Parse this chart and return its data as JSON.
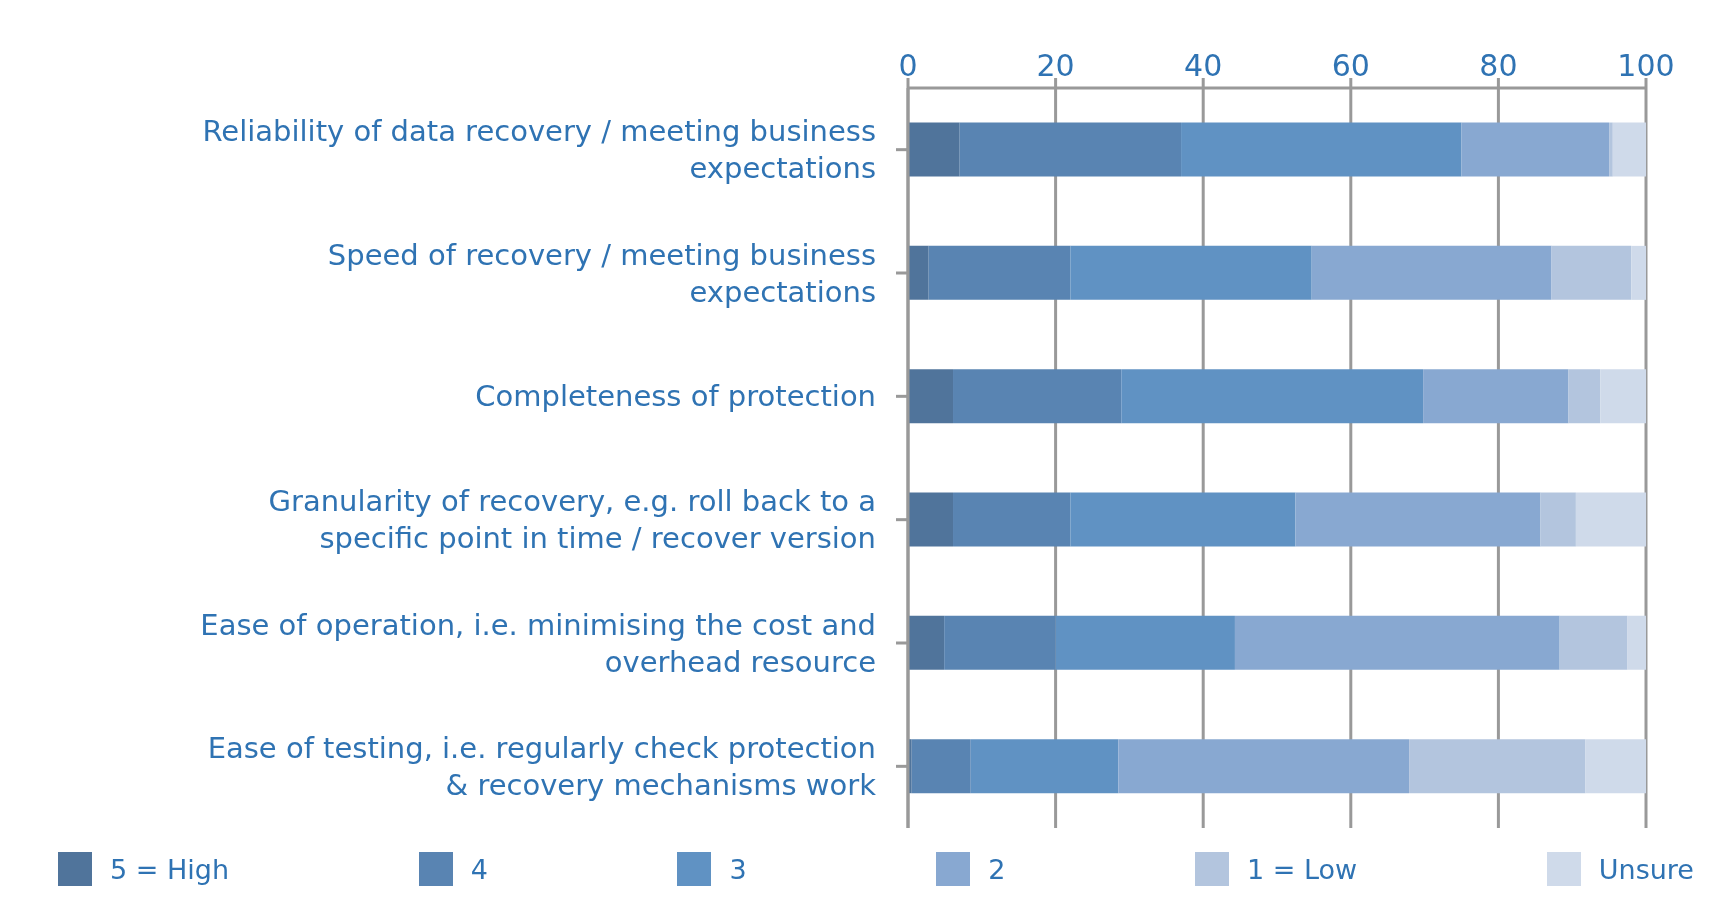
{
  "chart_data": {
    "type": "bar",
    "orientation": "horizontal",
    "stacked": true,
    "categories": [
      "Reliability of data recovery / meeting business expectations",
      "Speed of recovery / meeting business expectations",
      "Completeness of protection",
      "Granularity of recovery, e.g. roll back to a specific point in time / recover version",
      "Ease of operation, i.e. minimising the cost and overhead resource",
      "Ease of testing, i.e. regularly check protection & recovery mechanisms work"
    ],
    "series": [
      {
        "name": "5 = High",
        "color": "#50749b",
        "values": [
          7,
          2.8,
          6.1,
          6.1,
          4.9,
          0.5
        ]
      },
      {
        "name": "4",
        "color": "#5984b2",
        "values": [
          30,
          19.2,
          22.8,
          15.9,
          15.1,
          8
        ]
      },
      {
        "name": "3",
        "color": "#6092c3",
        "values": [
          38,
          32.7,
          40.9,
          30.5,
          24.3,
          20
        ]
      },
      {
        "name": "2",
        "color": "#88a8d1",
        "values": [
          20,
          32.5,
          19.7,
          33.2,
          44,
          39.4
        ]
      },
      {
        "name": "1 = Low",
        "color": "#b3c5de",
        "values": [
          0.5,
          10.8,
          4.3,
          4.8,
          9.2,
          23.9
        ]
      },
      {
        "name": "Unsure",
        "color": "#cfdaea",
        "values": [
          4.5,
          2,
          6.2,
          9.5,
          2.5,
          8.2
        ]
      }
    ],
    "xlim": [
      0,
      100
    ],
    "xticks": [
      0,
      20,
      40,
      60,
      80,
      100
    ],
    "grid": "x",
    "legend": "bottom"
  }
}
